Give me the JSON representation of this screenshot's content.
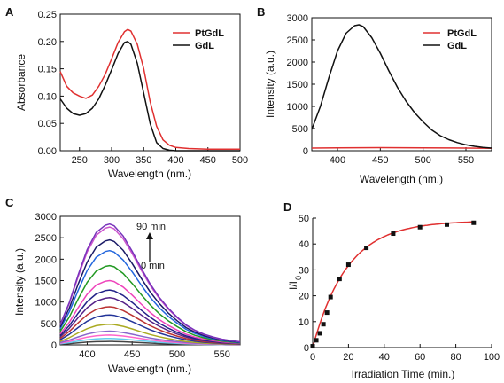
{
  "chart_data": [
    {
      "panel": "A",
      "type": "line",
      "xlabel": "Wavelength (nm.)",
      "ylabel": "Absorbance",
      "xlim": [
        220,
        500
      ],
      "ylim": [
        0.0,
        0.25
      ],
      "xticks": [
        250,
        300,
        350,
        400,
        450,
        500
      ],
      "yticks": [
        "0.00",
        "0.05",
        "0.10",
        "0.15",
        "0.20",
        "0.25"
      ],
      "legend_position": "top-right",
      "series": [
        {
          "name": "PtGdL",
          "color": "#e03030",
          "x": [
            220,
            230,
            240,
            250,
            260,
            270,
            280,
            290,
            300,
            310,
            320,
            325,
            330,
            340,
            350,
            360,
            370,
            380,
            390,
            400,
            420,
            450,
            500
          ],
          "y": [
            0.145,
            0.118,
            0.106,
            0.1,
            0.096,
            0.102,
            0.118,
            0.14,
            0.168,
            0.198,
            0.218,
            0.222,
            0.219,
            0.195,
            0.15,
            0.09,
            0.045,
            0.02,
            0.01,
            0.006,
            0.004,
            0.003,
            0.003
          ]
        },
        {
          "name": "GdL",
          "color": "#111111",
          "x": [
            220,
            230,
            240,
            250,
            260,
            270,
            280,
            290,
            300,
            310,
            320,
            325,
            330,
            340,
            350,
            360,
            370,
            380,
            390,
            400,
            450,
            500
          ],
          "y": [
            0.095,
            0.078,
            0.068,
            0.065,
            0.068,
            0.078,
            0.095,
            0.12,
            0.148,
            0.178,
            0.198,
            0.2,
            0.195,
            0.16,
            0.105,
            0.05,
            0.015,
            0.004,
            0.001,
            0.0,
            0.0,
            0.0
          ]
        }
      ]
    },
    {
      "panel": "B",
      "type": "line",
      "xlabel": "Wavelength (nm.)",
      "ylabel": "Intensity (a.u.)",
      "xlim": [
        370,
        580
      ],
      "ylim": [
        0,
        3000
      ],
      "xticks": [
        400,
        450,
        500,
        550
      ],
      "yticks": [
        "0",
        "500",
        "1000",
        "1500",
        "2000",
        "2500",
        "3000"
      ],
      "legend_position": "top-right",
      "series": [
        {
          "name": "PtGdL",
          "color": "#e03030",
          "x": [
            370,
            400,
            450,
            500,
            550,
            580
          ],
          "y": [
            60,
            65,
            70,
            65,
            60,
            55
          ]
        },
        {
          "name": "GdL",
          "color": "#111111",
          "x": [
            370,
            380,
            390,
            400,
            410,
            420,
            425,
            430,
            440,
            450,
            460,
            470,
            480,
            490,
            500,
            510,
            520,
            530,
            540,
            550,
            560,
            570,
            580
          ],
          "y": [
            480,
            1000,
            1650,
            2250,
            2650,
            2820,
            2840,
            2800,
            2550,
            2200,
            1800,
            1430,
            1120,
            860,
            650,
            470,
            340,
            250,
            185,
            135,
            100,
            75,
            60
          ]
        }
      ]
    },
    {
      "panel": "C",
      "type": "line",
      "xlabel": "Wavelength (nm.)",
      "ylabel": "Intensity (a.u.)",
      "xlim": [
        370,
        570
      ],
      "ylim": [
        0,
        3000
      ],
      "xticks": [
        400,
        450,
        500,
        550
      ],
      "yticks": [
        "0",
        "500",
        "1000",
        "1500",
        "2000",
        "2500",
        "3000"
      ],
      "annotations": {
        "top": "90 min",
        "bottom": "0 min"
      },
      "x": [
        370,
        380,
        390,
        400,
        410,
        420,
        425,
        430,
        440,
        450,
        460,
        470,
        480,
        490,
        500,
        510,
        520,
        530,
        540,
        550,
        560,
        570
      ],
      "shape": [
        0.17,
        0.35,
        0.58,
        0.79,
        0.93,
        0.99,
        1.0,
        0.985,
        0.9,
        0.775,
        0.635,
        0.505,
        0.395,
        0.305,
        0.23,
        0.165,
        0.12,
        0.088,
        0.065,
        0.047,
        0.035,
        0.026
      ],
      "series": [
        {
          "peak": 80,
          "color": "#444444"
        },
        {
          "peak": 150,
          "color": "#66ccee"
        },
        {
          "peak": 230,
          "color": "#ff66cc"
        },
        {
          "peak": 320,
          "color": "#8866cc"
        },
        {
          "peak": 480,
          "color": "#aaaa22"
        },
        {
          "peak": 700,
          "color": "#223399"
        },
        {
          "peak": 890,
          "color": "#bb3333"
        },
        {
          "peak": 1100,
          "color": "#552288"
        },
        {
          "peak": 1280,
          "color": "#222288"
        },
        {
          "peak": 1500,
          "color": "#ee44bb"
        },
        {
          "peak": 1850,
          "color": "#229922"
        },
        {
          "peak": 2200,
          "color": "#2266dd"
        },
        {
          "peak": 2450,
          "color": "#1a1a66"
        },
        {
          "peak": 2750,
          "color": "#cc55cc"
        },
        {
          "peak": 2820,
          "color": "#7733bb"
        }
      ]
    },
    {
      "panel": "D",
      "type": "scatter",
      "xlabel": "Irradiation Time (min.)",
      "ylabel": "I/I0",
      "xlim": [
        0,
        100
      ],
      "ylim": [
        0,
        50
      ],
      "xticks": [
        0,
        20,
        40,
        60,
        80,
        100
      ],
      "yticks": [
        "0",
        "10",
        "20",
        "30",
        "40",
        "50"
      ],
      "fit_color": "#e03030",
      "fit": {
        "a": 49,
        "k": 0.052
      },
      "x": [
        0,
        2,
        4,
        6,
        8,
        10,
        15,
        20,
        30,
        45,
        60,
        75,
        90
      ],
      "y": [
        0.5,
        2.8,
        5.5,
        9.0,
        13.5,
        19.5,
        26.5,
        32.0,
        38.5,
        44.0,
        46.5,
        47.5,
        48.2
      ]
    }
  ],
  "panel_labels": [
    "A",
    "B",
    "C",
    "D"
  ],
  "axis_labels": {
    "a_x": "Wavelength (nm.)",
    "a_y": "Absorbance",
    "b_x": "Wavelength (nm.)",
    "b_y": "Intensity (a.u.)",
    "c_x": "Wavelength (nm.)",
    "c_y": "Intensity (a.u.)",
    "d_x": "Irradiation Time (min.)",
    "d_y_main": "I/I",
    "d_y_sub": "0"
  },
  "legend": {
    "a_1": "PtGdL",
    "a_2": "GdL",
    "b_1": "PtGdL",
    "b_2": "GdL"
  },
  "annotations": {
    "c_top": "90 min",
    "c_bottom": "0 min"
  }
}
